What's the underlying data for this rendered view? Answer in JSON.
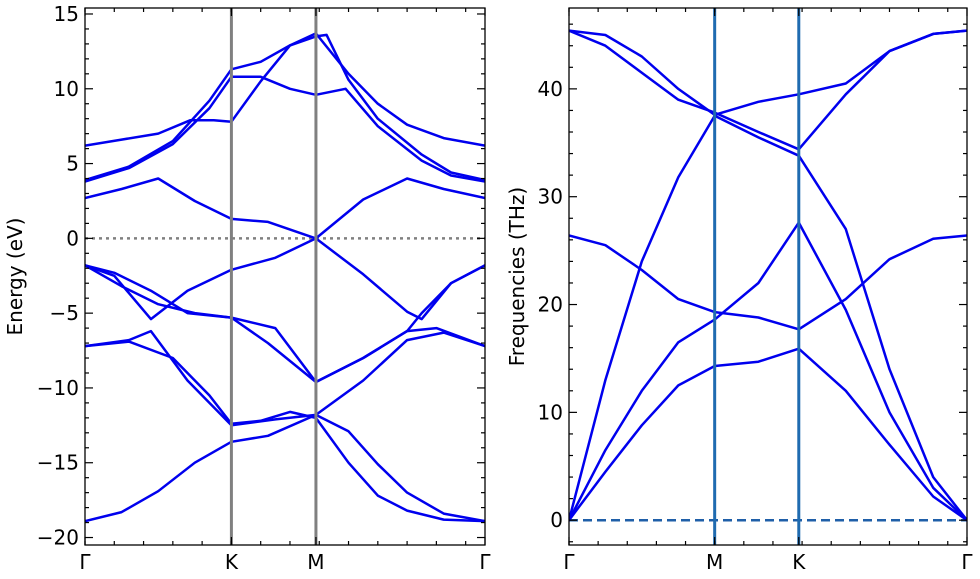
{
  "chart_data": [
    {
      "type": "line",
      "title": "",
      "ylabel": "Energy (eV)",
      "xlabel": "",
      "ylim": [
        -20.5,
        15.4
      ],
      "yticks": [
        -20,
        -15,
        -10,
        -5,
        0,
        5,
        10,
        15
      ],
      "ytick_labels": [
        "−20",
        "−15",
        "−10",
        "−5",
        "0",
        "5",
        "10",
        "15"
      ],
      "xticks": [
        {
          "label": "Γ",
          "x": 0.0
        },
        {
          "label": "K",
          "x": 1.0
        },
        {
          "label": "M",
          "x": 1.5774
        },
        {
          "label": "Γ",
          "x": 2.7321
        }
      ],
      "xlim": [
        0.0,
        2.7321
      ],
      "vlines": [
        1.0,
        1.5774
      ],
      "hline": {
        "y": 0,
        "style": "dotted"
      },
      "line_color": "#0000ee",
      "vline_color": "#808080",
      "grid": false,
      "series": [
        {
          "x": [
            0,
            0.25,
            0.5,
            0.72,
            0.88,
            1.0,
            1.2,
            1.4,
            1.5774,
            1.8,
            2.0,
            2.2,
            2.45,
            2.7321
          ],
          "y": [
            6.2,
            6.6,
            7.0,
            7.9,
            7.9,
            7.8,
            10.5,
            12.9,
            13.7,
            11.0,
            9.0,
            7.6,
            6.7,
            6.2
          ]
        },
        {
          "x": [
            0,
            0.3,
            0.6,
            0.85,
            1.0,
            1.2,
            1.4,
            1.5774,
            1.65,
            1.8,
            2.0,
            2.3,
            2.5,
            2.7321
          ],
          "y": [
            3.9,
            4.8,
            6.5,
            9.2,
            11.3,
            11.8,
            12.9,
            13.5,
            13.6,
            10.6,
            8.0,
            5.6,
            4.4,
            3.9
          ]
        },
        {
          "x": [
            0,
            0.3,
            0.6,
            0.85,
            1.0,
            1.2,
            1.4,
            1.5774,
            1.78,
            2.0,
            2.3,
            2.5,
            2.7321
          ],
          "y": [
            3.8,
            4.7,
            6.3,
            8.7,
            10.8,
            10.8,
            10.0,
            9.6,
            10.0,
            7.5,
            5.2,
            4.2,
            3.8
          ]
        },
        {
          "x": [
            0,
            0.25,
            0.5,
            0.75,
            1.0,
            1.25,
            1.5774,
            1.9,
            2.2,
            2.45,
            2.7321
          ],
          "y": [
            2.7,
            3.3,
            4.0,
            2.5,
            1.3,
            1.1,
            0.0,
            2.6,
            4.0,
            3.3,
            2.7
          ]
        },
        {
          "x": [
            0,
            0.25,
            0.5,
            0.75,
            1.0,
            1.25,
            1.5774,
            1.9,
            2.2,
            2.4,
            2.7321
          ],
          "y": [
            -1.8,
            -3.2,
            -4.4,
            -5.0,
            -5.3,
            -7.0,
            -9.6,
            -8.0,
            -6.2,
            -6.0,
            -7.2
          ]
        },
        {
          "x": [
            0,
            0.2,
            0.45,
            0.7,
            1.0,
            1.3,
            1.5774,
            1.9,
            2.2,
            2.3,
            2.5,
            2.7321
          ],
          "y": [
            -1.8,
            -2.5,
            -5.4,
            -3.5,
            -2.1,
            -1.3,
            0.0,
            -2.4,
            -4.9,
            -5.4,
            -3.0,
            -1.8
          ]
        },
        {
          "x": [
            0,
            0.2,
            0.45,
            0.7,
            1.0,
            1.3,
            1.5774,
            1.9,
            2.2,
            2.3,
            2.5,
            2.7321
          ],
          "y": [
            -1.8,
            -2.3,
            -3.5,
            -5.0,
            -5.3,
            -6.0,
            -9.6,
            -8.0,
            -6.2,
            -5.0,
            -3.0,
            -1.8
          ]
        },
        {
          "x": [
            0,
            0.3,
            0.45,
            0.7,
            1.0,
            1.3,
            1.5774,
            1.9,
            2.2,
            2.45,
            2.7321
          ],
          "y": [
            -7.2,
            -6.8,
            -6.2,
            -9.5,
            -12.5,
            -12.1,
            -11.8,
            -9.5,
            -6.8,
            -6.3,
            -7.2
          ]
        },
        {
          "x": [
            0,
            0.25,
            0.5,
            0.75,
            1.0,
            1.25,
            1.5774,
            1.8,
            2.0,
            2.2,
            2.45,
            2.7321
          ],
          "y": [
            -18.9,
            -18.3,
            -16.9,
            -15.0,
            -13.6,
            -13.2,
            -11.8,
            -12.9,
            -15.1,
            -17.0,
            -18.4,
            -18.9
          ]
        },
        {
          "x": [
            0,
            0.3,
            0.6,
            0.85,
            1.0,
            1.2,
            1.4,
            1.5774,
            1.8,
            2.0,
            2.2,
            2.45,
            2.7321
          ],
          "y": [
            -7.2,
            -6.9,
            -8.0,
            -10.5,
            -12.4,
            -12.2,
            -11.6,
            -12.0,
            -15.0,
            -17.2,
            -18.2,
            -18.8,
            -18.9
          ]
        }
      ]
    },
    {
      "type": "line",
      "title": "",
      "ylabel": "Frequencies (THz)",
      "xlabel": "",
      "ylim": [
        -2.3,
        47.5
      ],
      "yticks": [
        0,
        10,
        20,
        30,
        40
      ],
      "ytick_labels": [
        "0",
        "10",
        "20",
        "30",
        "40"
      ],
      "xticks": [
        {
          "label": "Γ",
          "x": 0.0
        },
        {
          "label": "M",
          "x": 1.0
        },
        {
          "label": "K",
          "x": 1.5774
        },
        {
          "label": "Γ",
          "x": 2.7321
        }
      ],
      "xlim": [
        0.0,
        2.7321
      ],
      "vlines": [
        1.0,
        1.5774
      ],
      "hline": {
        "y": 0,
        "style": "dashed"
      },
      "line_color": "#0000ee",
      "vline_color": "#1f6bb0",
      "grid": false,
      "series": [
        {
          "x": [
            0,
            0.25,
            0.5,
            0.75,
            1.0,
            1.3,
            1.5774,
            1.9,
            2.2,
            2.5,
            2.7321
          ],
          "y": [
            45.4,
            45.0,
            43.0,
            40.0,
            37.6,
            38.8,
            39.5,
            40.5,
            43.5,
            45.1,
            45.4
          ]
        },
        {
          "x": [
            0,
            0.25,
            0.5,
            0.75,
            1.0,
            1.3,
            1.5774,
            1.9,
            2.2,
            2.5,
            2.7321
          ],
          "y": [
            45.4,
            44.0,
            41.5,
            39.0,
            37.8,
            36.0,
            34.4,
            39.5,
            43.5,
            45.1,
            45.4
          ]
        },
        {
          "x": [
            0,
            0.25,
            0.5,
            0.75,
            1.0,
            1.3,
            1.5774,
            1.9,
            2.2,
            2.5,
            2.7321
          ],
          "y": [
            0.0,
            13.0,
            24.0,
            31.8,
            37.5,
            35.5,
            33.8,
            27.0,
            14.0,
            4.0,
            0.0
          ]
        },
        {
          "x": [
            0,
            0.25,
            0.5,
            0.75,
            1.0,
            1.3,
            1.5774,
            1.9,
            2.2,
            2.5,
            2.7321
          ],
          "y": [
            26.4,
            25.5,
            23.2,
            20.5,
            19.3,
            18.8,
            17.7,
            20.5,
            24.2,
            26.1,
            26.4
          ]
        },
        {
          "x": [
            0,
            0.25,
            0.5,
            0.75,
            1.0,
            1.3,
            1.5774,
            1.9,
            2.2,
            2.5,
            2.7321
          ],
          "y": [
            0.0,
            6.5,
            12.0,
            16.5,
            18.6,
            22.0,
            27.6,
            19.5,
            10.0,
            3.0,
            0.0
          ]
        },
        {
          "x": [
            0,
            0.25,
            0.5,
            0.75,
            1.0,
            1.3,
            1.5774,
            1.9,
            2.2,
            2.5,
            2.7321
          ],
          "y": [
            0.0,
            4.5,
            8.8,
            12.5,
            14.3,
            14.7,
            15.9,
            12.0,
            7.0,
            2.2,
            0.0
          ]
        }
      ]
    }
  ]
}
